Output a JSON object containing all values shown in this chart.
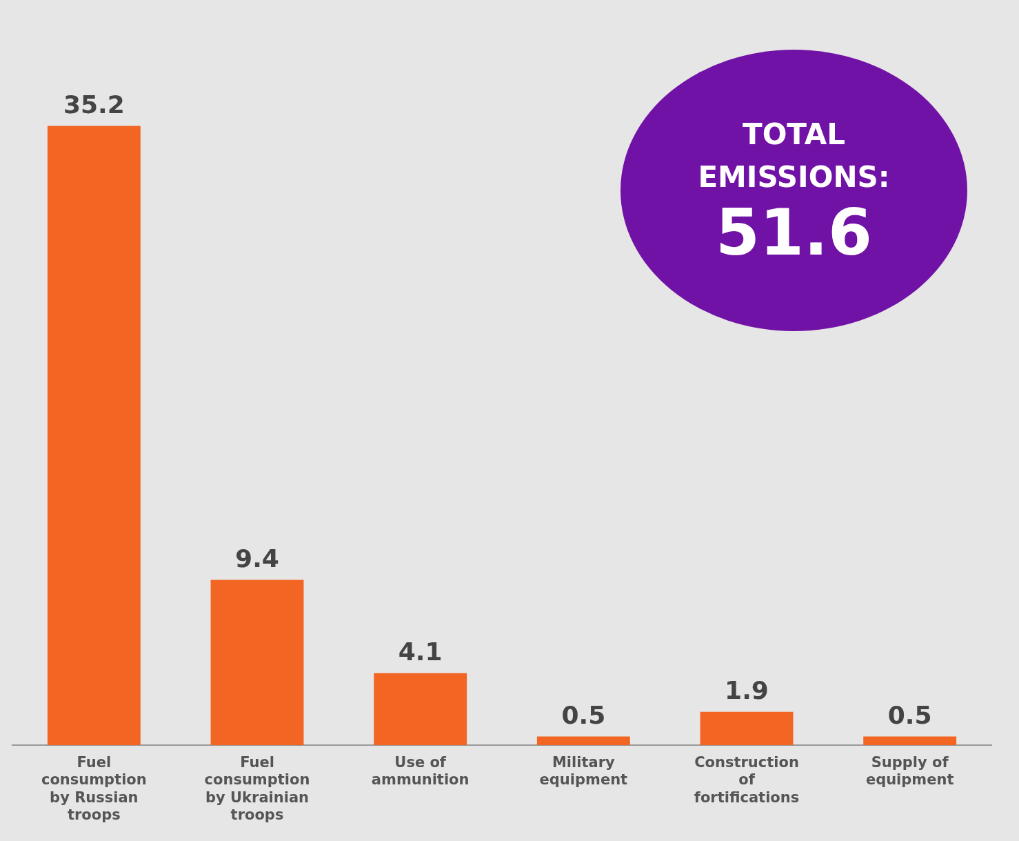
{
  "chart_data": {
    "type": "bar",
    "categories": [
      "Fuel consumption by Russian troops",
      "Fuel consumption by Ukrainian troops",
      "Use of ammunition",
      "Military equipment",
      "Construction of fortifications",
      "Supply of equipment"
    ],
    "values": [
      35.2,
      9.4,
      4.1,
      0.5,
      1.9,
      0.5
    ],
    "color": "#f26522",
    "data_labels": true,
    "annotations": [
      "TOTAL EMISSIONS:",
      "51.6"
    ],
    "grid": false,
    "legend": false
  }
}
